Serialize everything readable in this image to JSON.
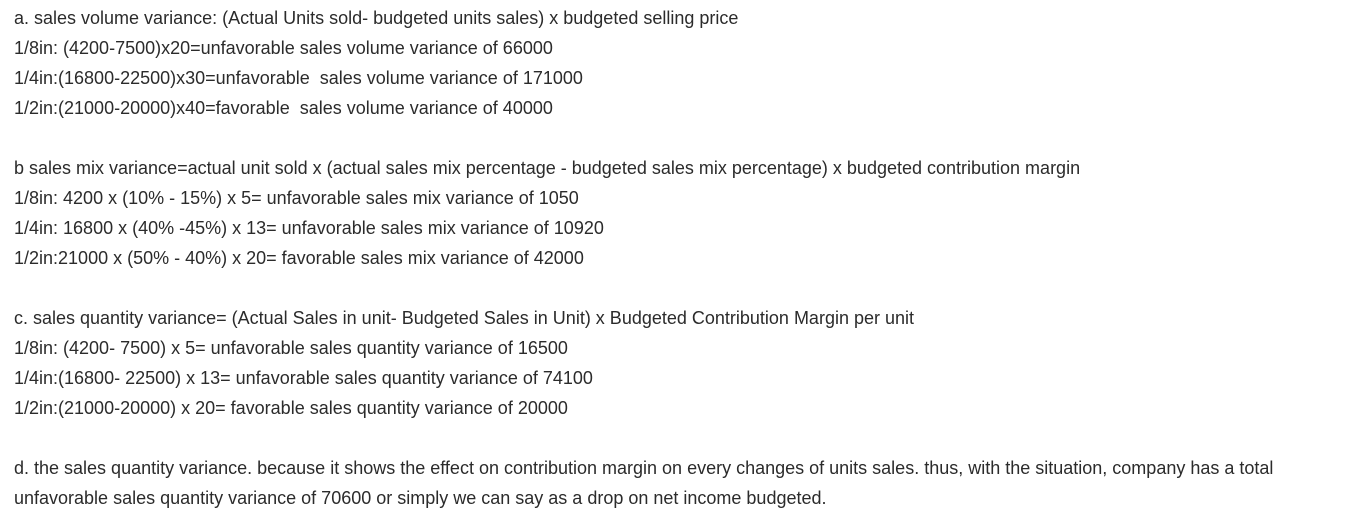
{
  "sections": {
    "a": {
      "heading": "a. sales volume variance: (Actual Units sold- budgeted units sales) x budgeted selling price",
      "lines": [
        "1/8in: (4200-7500)x20=unfavorable sales volume variance of 66000",
        "1/4in:(16800-22500)x30=unfavorable  sales volume variance of 171000",
        "1/2in:(21000-20000)x40=favorable  sales volume variance of 40000"
      ]
    },
    "b": {
      "heading": "b sales mix variance=actual unit sold x (actual sales mix percentage - budgeted sales mix percentage) x budgeted contribution margin",
      "lines": [
        "1/8in: 4200 x (10% - 15%) x 5= unfavorable sales mix variance of 1050",
        "1/4in: 16800 x (40% -45%) x 13= unfavorable sales mix variance of 10920",
        "1/2in:21000 x (50% - 40%) x 20= favorable sales mix variance of 42000"
      ]
    },
    "c": {
      "heading": "c. sales quantity variance= (Actual Sales in unit- Budgeted Sales in Unit) x Budgeted Contribution Margin per unit",
      "lines": [
        "1/8in: (4200- 7500) x 5= unfavorable sales quantity variance of 16500",
        "1/4in:(16800- 22500) x 13= unfavorable sales quantity variance of 74100",
        "1/2in:(21000-20000) x 20= favorable sales quantity variance of 20000"
      ]
    },
    "d": {
      "text": "d. the sales quantity variance. because it shows the effect on contribution margin on every changes of units sales. thus, with the situation, company has a total unfavorable sales quantity variance of 70600 or simply we can say as a drop on net income budgeted."
    }
  }
}
